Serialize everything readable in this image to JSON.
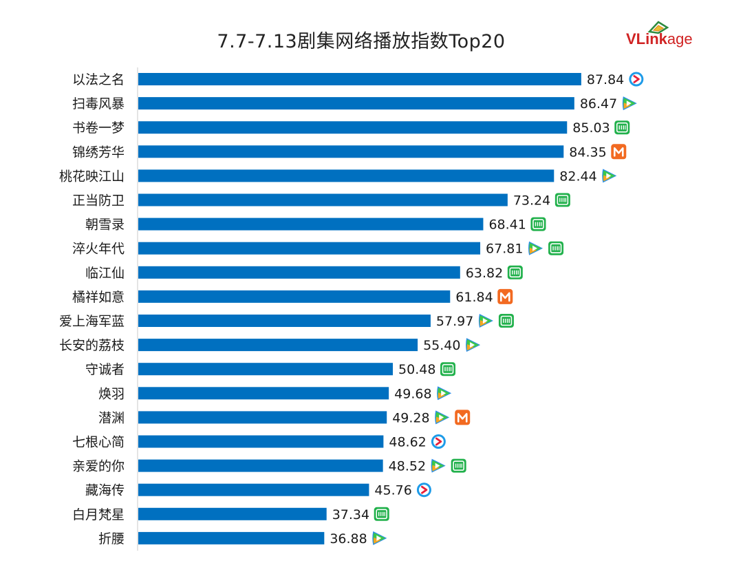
{
  "chart_data": {
    "type": "bar",
    "orientation": "horizontal",
    "title": "7.7-7.13剧集网络播放指数Top20",
    "xlim": [
      0,
      100
    ],
    "grid": false,
    "legend": "none",
    "bar_color": "#0070c0",
    "categories": [
      "以法之名",
      "扫毒风暴",
      "书卷一梦",
      "锦绣芳华",
      "桃花映江山",
      "正当防卫",
      "朝雪录",
      "淬火年代",
      "临江仙",
      "橘祥如意",
      "爱上海军蓝",
      "长安的荔枝",
      "守诚者",
      "焕羽",
      "潜渊",
      "七根心简",
      "亲爱的你",
      "藏海传",
      "白月梵星",
      "折腰"
    ],
    "values": [
      87.84,
      86.47,
      85.03,
      84.35,
      82.44,
      73.24,
      68.41,
      67.81,
      63.82,
      61.84,
      57.97,
      55.4,
      50.48,
      49.68,
      49.28,
      48.62,
      48.52,
      45.76,
      37.34,
      36.88
    ],
    "value_labels": [
      "87.84",
      "86.47",
      "85.03",
      "84.35",
      "82.44",
      "73.24",
      "68.41",
      "67.81",
      "63.82",
      "61.84",
      "57.97",
      "55.40",
      "50.48",
      "49.68",
      "49.28",
      "48.62",
      "48.52",
      "45.76",
      "37.34",
      "36.88"
    ],
    "platforms": [
      [
        "youku-icon"
      ],
      [
        "tencent-video-icon"
      ],
      [
        "iqiyi-icon"
      ],
      [
        "mango-tv-icon"
      ],
      [
        "tencent-video-icon"
      ],
      [
        "iqiyi-icon"
      ],
      [
        "iqiyi-icon"
      ],
      [
        "tencent-video-icon",
        "iqiyi-icon"
      ],
      [
        "iqiyi-icon"
      ],
      [
        "mango-tv-icon"
      ],
      [
        "tencent-video-icon",
        "iqiyi-icon"
      ],
      [
        "tencent-video-icon"
      ],
      [
        "iqiyi-icon"
      ],
      [
        "tencent-video-icon"
      ],
      [
        "tencent-video-icon",
        "mango-tv-icon"
      ],
      [
        "youku-icon"
      ],
      [
        "tencent-video-icon",
        "iqiyi-icon"
      ],
      [
        "youku-icon"
      ],
      [
        "iqiyi-icon"
      ],
      [
        "tencent-video-icon"
      ]
    ]
  },
  "brand": {
    "part1": "VLink",
    "part2": "age",
    "color": "#d02323"
  },
  "colors": {
    "axis": "#c8c8c8",
    "label": "#1a1a1a",
    "iqiyi": "#22b14c",
    "mango": "#f26a21",
    "youku_ring": "#1e9be8",
    "youku_arrow": "#e8203a",
    "tencent_blue": "#2a8de8",
    "tencent_green": "#3cc84a",
    "tencent_orange": "#f5a623"
  }
}
